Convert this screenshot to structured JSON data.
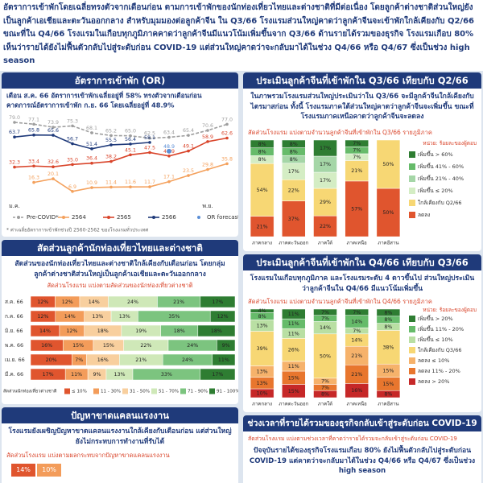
{
  "header": {
    "text": "อัตราการเข้าพักโดยเฉลี่ยทรงตัวจากเดือนก่อน ตามการเข้าพักของนักท่องเที่ยวไทยและต่างชาติที่มีต่อเนื่อง โดยลูกค้าต่างชาติส่วนใหญ่ยังเป็นลูกค้าเอเชียและตะวันออกกลาง สำหรับมุมมองต่อลูกค้าจีน ใน Q3/66 โรงแรมส่วนใหญ่คาดว่าลูกค้าจีนจะเข้าพักใกล้เคียงกับ Q2/66 ขณะที่ใน Q4/66 โรงแรมในเกือบทุกภูมิภาคคาดว่าลูกค้าจีนมีแนวโน้มเพิ่มขึ้นจาก Q3/66 ด้านรายได้รวมของธุรกิจ โรงแรมเกือบ 80% เห็นว่ารายได้ยังไม่ฟื้นตัวกลับไปสู่ระดับก่อน COVID-19 แต่ส่วนใหญ่คาดว่าจะกลับมาได้ในช่วง Q4/66 หรือ Q4/67 ซึ่งเป็นช่วง high season"
  },
  "chart_data": [
    {
      "type": "line",
      "title": "อัตราการเข้าพัก (OR)",
      "subtitle": [
        "เดือน ส.ค. 66 อัตราการเข้าพักเฉลี่ยอยู่ที่ 58% ทรงตัวจากเดือนก่อน",
        "คาดการณ์อัตราการเข้าพัก ก.ย. 66 โดยเฉลี่ยอยู่ที่ 48.9%"
      ],
      "note": "* ค่าเฉลี่ยอัตราการเข้าพักช่วงปี 2560-2562 ของโรงแรมทั่วประเทศ",
      "categories": [
        "ม.ค.",
        null,
        null,
        null,
        null,
        null,
        null,
        null,
        null,
        null,
        "พ.ย.",
        null
      ],
      "series": [
        {
          "name": "Pre-COVID*",
          "color": "#9e9e9e",
          "style": "dashed",
          "values": [
            79.0,
            77.1,
            73.9,
            75.3,
            68.1,
            65.2,
            65.0,
            62.5,
            63.4,
            65.4,
            70.6,
            77.0
          ],
          "value_labels": [
            "79.0",
            "77.1",
            "73.9",
            "75.3",
            "68.1",
            "65.2",
            "65.0",
            "62.5",
            "63.4",
            "65.4",
            "70.6",
            "77.0"
          ]
        },
        {
          "name": "2564",
          "color": "#f4a15d",
          "style": "solid",
          "values": [
            null,
            16.3,
            20.1,
            6.9,
            10.9,
            11.4,
            11.6,
            11.7,
            17.1,
            23.5,
            29.8,
            35.8
          ]
        },
        {
          "name": "2565",
          "color": "#d9452b",
          "style": "solid",
          "values": [
            32.3,
            33.4,
            32.6,
            35.0,
            36.4,
            38.2,
            45.1,
            47.5,
            43.9,
            49.1,
            58.9,
            62.6
          ],
          "value_labels": [
            "32.3",
            "33.4",
            "32.6",
            "35.0",
            "36.4",
            "38.2",
            "45.1",
            "47.5",
            "43.9",
            "49.1",
            "58.9",
            "62.6"
          ]
        },
        {
          "name": "2566",
          "color": "#1f3a7a",
          "style": "solid",
          "values": [
            63.7,
            65.8,
            65.6,
            56.7,
            51.4,
            55.5,
            56.4,
            58.1,
            null,
            null,
            null,
            null
          ]
        },
        {
          "name": "OR forecast",
          "color": "#5b8fd6",
          "style": "marker",
          "values": [
            null,
            null,
            null,
            null,
            null,
            null,
            null,
            null,
            48.9,
            null,
            null,
            null
          ]
        }
      ]
    },
    {
      "type": "stacked_bar",
      "title": "ประเมินลูกค้าจีนที่เข้าพักใน Q3/66 เทียบกับ Q2/66",
      "text": "ในภาพรวมโรงแรมส่วนใหญ่ประเมินว่าใน Q3/66 จะมีลูกค้าจีนใกล้เคียงกับไตรมาสก่อน ทั้งนี้ โรงแรมภาคใต้ส่วนใหญ่คาดว่าลูกค้าจีนจะเพิ่มขึ้น ขณะที่โรงแรมภาคเหนือคาดว่าลูกค้าจีนจะลดลง",
      "caption": "สัดส่วนโรงแรม แบ่งตามจำนวนลูกค้าจีนที่เข้าพักใน Q3/66 รายภูมิภาค",
      "unit": "หน่วย: ร้อยละของผู้ตอบ",
      "categories": [
        "ภาคกลาง",
        "ภาคตะวันออก",
        "ภาคใต้",
        "ภาคเหนือ",
        "ภาคอีสาน"
      ],
      "series": [
        {
          "name": "เพิ่มขึ้น > 60%",
          "color": "#2e7d32",
          "values": [
            8,
            8,
            17,
            7,
            null
          ],
          "value_labels": [
            "8%",
            "8%",
            "17%",
            "7%",
            null
          ]
        },
        {
          "name": "เพิ่มขึ้น 41% - 60%",
          "color": "#66bb6a",
          "values": [
            8,
            8,
            null,
            7,
            null
          ],
          "value_labels": [
            "8%",
            "8%",
            null,
            "7%",
            null
          ]
        },
        {
          "name": "เพิ่มขึ้น 21% - 40%",
          "color": "#a5d6a7",
          "values": [
            null,
            8,
            17,
            null,
            null
          ],
          "value_labels": [
            null,
            "8%",
            "17%",
            null,
            null
          ]
        },
        {
          "name": "เพิ่มขึ้น ≤ 20%",
          "color": "#d4edc4",
          "values": [
            8,
            17,
            17,
            7,
            null
          ],
          "value_labels": [
            "8%",
            "17%",
            "17%",
            "7%",
            null
          ]
        },
        {
          "name": "ใกล้เคียงกับ Q2/66",
          "color": "#f7d774",
          "values": [
            54,
            22,
            29,
            21,
            50
          ],
          "value_labels": [
            "54%",
            "22%",
            "29%",
            "21%",
            "50%"
          ]
        },
        {
          "name": "ลดลง",
          "color": "#e0552e",
          "values": [
            21,
            37,
            22,
            57,
            50
          ],
          "value_labels": [
            "21%",
            "37%",
            "22%",
            "57%",
            "50%"
          ]
        }
      ]
    },
    {
      "type": "hstacked_bar",
      "title": "สัดส่วนลูกค้านักท่องเที่ยวไทยและต่างชาติ",
      "text": "สัดส่วนของนักท่องเที่ยวไทยและต่างชาติใกล้เคียงกับเดือนก่อน โดยกลุ่มลูกค้าต่างชาติส่วนใหญ่เป็นลูกค้าเอเชียและตะวันออกกลาง",
      "caption": "สัดส่วนโรงแรม แบ่งตามสัดส่วนของนักท่องเที่ยวต่างชาติ",
      "legend_title": "สัดส่วนนักท่องเที่ยวต่างชาติ",
      "categories": [
        "ส.ค. 66",
        "ก.ค. 66",
        "มิ.ย. 66",
        "พ.ค. 66",
        "เม.ย. 66",
        "มี.ค. 66"
      ],
      "series": [
        {
          "name": "≤ 10%",
          "color": "#e0552e",
          "values": [
            12,
            12,
            14,
            16,
            20,
            17
          ],
          "value_labels": [
            "12%",
            "12%",
            "14%",
            "16%",
            "20%",
            "17%"
          ]
        },
        {
          "name": "11 - 30%",
          "color": "#f39c5a",
          "values": [
            12,
            14,
            12,
            15,
            7,
            11
          ],
          "value_labels": [
            "12%",
            "14%",
            "12%",
            "15%",
            "7%",
            "11%"
          ]
        },
        {
          "name": "31 - 50%",
          "color": "#f8cf9e",
          "values": [
            14,
            13,
            18,
            15,
            16,
            9
          ],
          "value_labels": [
            "14%",
            "13%",
            "18%",
            "15%",
            "16%",
            "9%"
          ]
        },
        {
          "name": "51 - 70%",
          "color": "#cfe8b8",
          "values": [
            24,
            13,
            19,
            22,
            21,
            13
          ],
          "value_labels": [
            "24%",
            "13%",
            "19%",
            "22%",
            "21%",
            "13%"
          ]
        },
        {
          "name": "71 - 90%",
          "color": "#7cc47f",
          "values": [
            21,
            35,
            18,
            24,
            24,
            33
          ],
          "value_labels": [
            "21%",
            "35%",
            "18%",
            "24%",
            "24%",
            "33%"
          ]
        },
        {
          "name": "91 - 100%",
          "color": "#2e7d32",
          "values": [
            17,
            12,
            18,
            9,
            11,
            17
          ],
          "value_labels": [
            "17%",
            "12%",
            "18%",
            "9%",
            "11%",
            "17%"
          ]
        }
      ]
    },
    {
      "type": "stacked_bar",
      "title": "ประเมินลูกค้าจีนที่เข้าพักใน Q4/66 เทียบกับ Q3/66",
      "text": "โรงแรมในเกือบทุกภูมิภาค และโรงแรมระดับ 4 ดาวขึ้นไป ส่วนใหญ่ประเมินว่าลูกค้าจีนใน Q4/66 มีแนวโน้มเพิ่มขึ้น",
      "caption": "สัดส่วนโรงแรม แบ่งตามจำนวนลูกค้าจีนที่เข้าพักใน Q4/66 รายภูมิภาค",
      "unit": "หน่วย: ร้อยละของผู้ตอบ",
      "categories": [
        "ภาคกลาง",
        "ภาคตะวันออก",
        "ภาคใต้",
        "ภาคเหนือ",
        "ภาคอีสาน"
      ],
      "series": [
        {
          "name": "เพิ่มขึ้น > 20%",
          "color": "#2e7d32",
          "values": [
            4,
            11,
            7,
            7,
            8
          ],
          "value_labels": [
            "4%",
            "11%",
            "7%",
            "7%",
            "8%"
          ]
        },
        {
          "name": "เพิ่มขึ้น 11% - 20%",
          "color": "#66bb6a",
          "values": [
            8,
            11,
            7,
            14,
            8
          ],
          "value_labels": [
            "8%",
            "11%",
            "7%",
            "14%",
            "8%"
          ]
        },
        {
          "name": "เพิ่มขึ้น ≤ 10%",
          "color": "#b9dfa3",
          "values": [
            13,
            11,
            14,
            7,
            8
          ],
          "value_labels": [
            "13%",
            "11%",
            "14%",
            "7%",
            "8%"
          ]
        },
        {
          "name": "ใกล้เคียงกับ Q3/66",
          "color": "#f7d774",
          "values": [
            39,
            26,
            50,
            14,
            38
          ],
          "value_labels": [
            "39%",
            "26%",
            "50%",
            "14%",
            "38%"
          ]
        },
        {
          "name": "ลดลง ≤ 10%",
          "color": "#f6b26b",
          "values": [
            13,
            11,
            7,
            21,
            15
          ],
          "value_labels": [
            "13%",
            "11%",
            "7%",
            "21%",
            "15%"
          ]
        },
        {
          "name": "ลดลง 11% - 20%",
          "color": "#e8762e",
          "values": [
            13,
            15,
            7,
            21,
            15
          ],
          "value_labels": [
            "13%",
            "15%",
            "7%",
            "21%",
            "15%"
          ]
        },
        {
          "name": "ลดลง > 20%",
          "color": "#c62828",
          "values": [
            10,
            15,
            8,
            16,
            8
          ],
          "value_labels": [
            "10%",
            "15%",
            "8%",
            "16%",
            "8%"
          ]
        }
      ]
    }
  ],
  "labor": {
    "title": "ปัญหาขาดแคลนแรงงาน",
    "text": "โรงแรมยังเผชิญปัญหาขาดแคลนแรงงานใกล้เคียงกับเดือนก่อน แต่ส่วนใหญ่ยังไม่กระทบการทำงานที่รับได้",
    "caption": "สัดส่วนโรงแรม แบ่งตามผลกระทบจากปัญหาขาดแคลนแรงงาน",
    "labels": [
      "14%",
      "10%"
    ]
  },
  "revenue": {
    "title": "ช่วงเวลาที่รายได้รวมของธุรกิจกลับเข้าสู่ระดับก่อน COVID-19",
    "caption": "สัดส่วนโรงแรม แบ่งตามช่วงเวลาที่คาดว่ารายได้รวมจะกลับเข้าสู่ระดับก่อน COVID-19",
    "text": "ปัจจุบันรายได้ของธุรกิจโรงแรมเกือบ 80% ยังไม่ฟื้นตัวกลับไปสู่ระดับก่อน COVID-19 แต่คาดว่าจะกลับมาได้ในช่วง Q4/66 หรือ Q4/67 ซึ่งเป็นช่วง high season"
  }
}
